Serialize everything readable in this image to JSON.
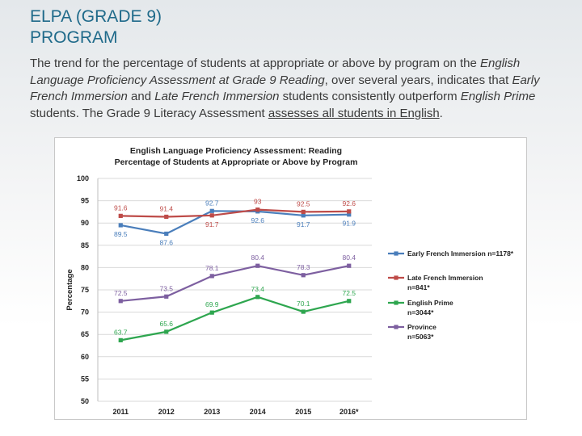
{
  "slide": {
    "title_line1": "ELPA (GRADE 9)",
    "title_line2": "PROGRAM",
    "para": {
      "p1": "The trend for the percentage of students at appropriate or above by program on the ",
      "p2": "English Language Proficiency Assessment at Grade 9 Reading",
      "p3": ", over several years, indicates that ",
      "p4": "Early French Immersion",
      "p5": " and ",
      "p6": "Late French Immersion",
      "p7": " students consistently outperform ",
      "p8": "English Prime",
      "p9": " students. The Grade 9 Literacy Assessment ",
      "p10": "assesses all students in English",
      "p11": "."
    }
  },
  "chart_data": {
    "type": "line",
    "title": "English Language Proficiency Assessment: Reading",
    "subtitle": "Percentage of Students at Appropriate or Above by Program",
    "xlabel": "",
    "ylabel": "Percentage",
    "ylim": [
      50,
      100
    ],
    "yticks": [
      50,
      55,
      60,
      65,
      70,
      75,
      80,
      85,
      90,
      95,
      100
    ],
    "categories": [
      "2011",
      "2012",
      "2013",
      "2014",
      "2015",
      "2016*"
    ],
    "series": [
      {
        "name": "Early French Immersion",
        "legend_line1": "Early French Immersion  n=1178*",
        "legend_line2": "",
        "color": "#4a7ebb",
        "values": [
          89.5,
          87.6,
          92.7,
          92.6,
          91.7,
          91.9
        ],
        "labels": [
          "89.5",
          "87.6",
          "92.7",
          "92.6",
          "91.7",
          "91.9"
        ]
      },
      {
        "name": "Late French Immersion",
        "legend_line1": "Late French Immersion",
        "legend_line2": "n=841*",
        "color": "#be4b48",
        "values": [
          91.6,
          91.4,
          91.7,
          93,
          92.5,
          92.6
        ],
        "labels": [
          "91.6",
          "91.4",
          "91.7",
          "93",
          "92.5",
          "92.6"
        ]
      },
      {
        "name": "English Prime",
        "legend_line1": "English Prime",
        "legend_line2": "n=3044*",
        "color": "#2ea64f",
        "values": [
          63.7,
          65.6,
          69.9,
          73.4,
          70.1,
          72.5
        ],
        "labels": [
          "63.7",
          "65.6",
          "69.9",
          "73.4",
          "70.1",
          "72.5"
        ]
      },
      {
        "name": "Province",
        "legend_line1": "Province",
        "legend_line2": "n=5063*",
        "color": "#7d5fa0",
        "values": [
          72.5,
          73.5,
          78.1,
          80.4,
          78.3,
          80.4
        ],
        "labels": [
          "72.5",
          "73.5",
          "78.1",
          "80.4",
          "78.3",
          "80.4"
        ]
      }
    ]
  }
}
